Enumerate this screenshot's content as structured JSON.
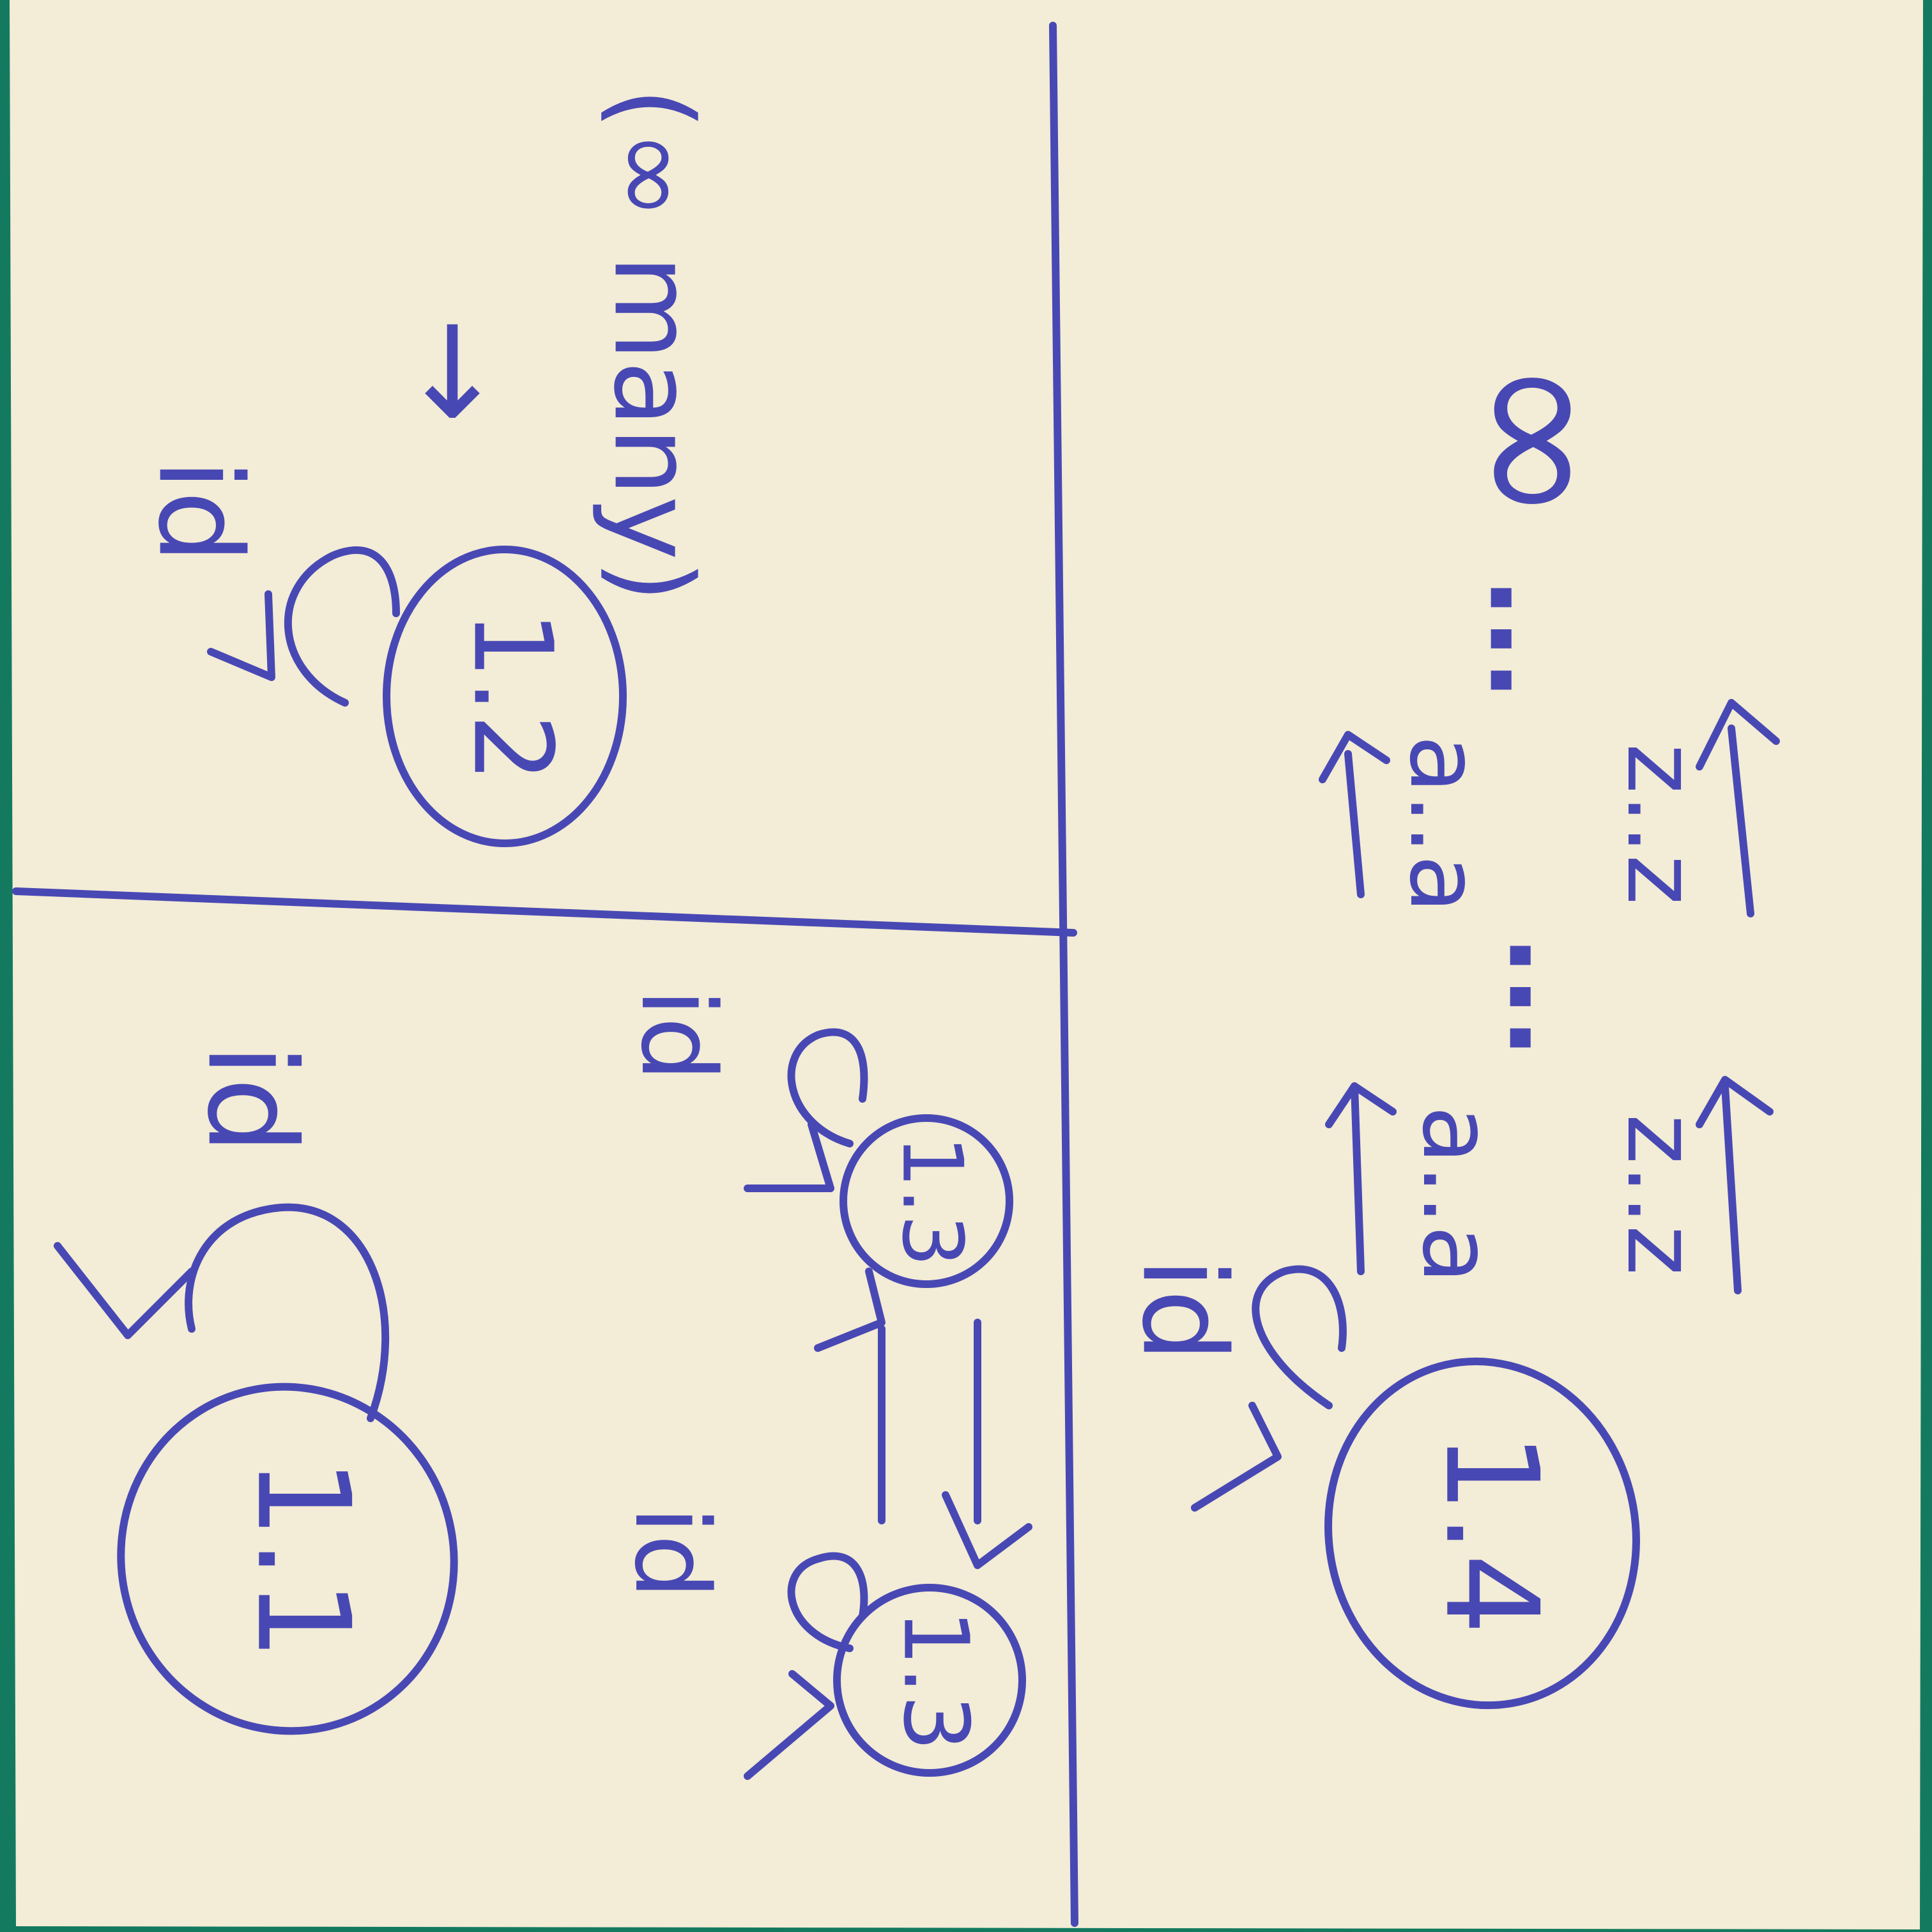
{
  "colors": {
    "background": "#137a5f",
    "paper": "#f3ecd6",
    "ink": "#4848b4"
  },
  "quadrants": {
    "top_left": {
      "node_label": "1.2",
      "loop_label": "id",
      "arrow_symbol": "→",
      "note": "(∞ many)"
    },
    "bottom_left": {
      "node_label": "1.1",
      "loop_label": "id"
    },
    "bottom_middle": {
      "node_a_label": "1.3",
      "node_b_label": "1.3",
      "loop_a_label": "id",
      "loop_b_label": "id"
    },
    "bottom_right": {
      "node_label": "1.4",
      "loop_label": "id",
      "arrow_1_top": "a..a",
      "arrow_1_bottom": "z..z",
      "arrow_2_top": "a..a",
      "arrow_2_bottom": "z..z",
      "dots_1": "...",
      "dots_2": "...",
      "infinity": "∞"
    }
  }
}
